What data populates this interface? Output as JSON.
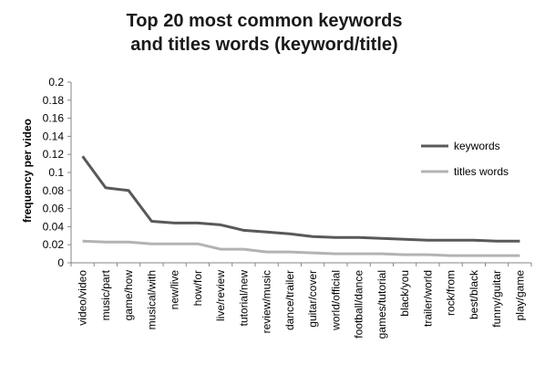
{
  "chart_data": {
    "type": "line",
    "title_line1": "Top 20 most common keywords",
    "title_line2": "and titles words (keyword/title)",
    "xlabel": "",
    "ylabel": "frequency per video",
    "ylim": [
      0,
      0.2
    ],
    "yticks": [
      "0",
      "0.02",
      "0.04",
      "0.06",
      "0.08",
      "0.1",
      "0.12",
      "0.14",
      "0.16",
      "0.18",
      "0.2"
    ],
    "categories": [
      "video/video",
      "music/part",
      "game/how",
      "musical/with",
      "new/live",
      "how/for",
      "live/review",
      "tutorial/new",
      "review/music",
      "dance/trailer",
      "guitar/cover",
      "world/official",
      "football/dance",
      "games/tutorial",
      "black/you",
      "trailer/world",
      "rock/from",
      "best/black",
      "funny/guitar",
      "play/game"
    ],
    "series": [
      {
        "name": "keywords",
        "color": "#595959",
        "values": [
          0.118,
          0.083,
          0.08,
          0.046,
          0.044,
          0.044,
          0.042,
          0.036,
          0.034,
          0.032,
          0.029,
          0.028,
          0.028,
          0.027,
          0.026,
          0.025,
          0.025,
          0.025,
          0.024,
          0.024
        ]
      },
      {
        "name": "titles words",
        "color": "#b3b3b3",
        "values": [
          0.024,
          0.023,
          0.023,
          0.021,
          0.021,
          0.021,
          0.015,
          0.015,
          0.012,
          0.012,
          0.011,
          0.01,
          0.01,
          0.01,
          0.009,
          0.009,
          0.008,
          0.008,
          0.008,
          0.008
        ]
      }
    ],
    "legend_position": "right",
    "grid": false
  }
}
